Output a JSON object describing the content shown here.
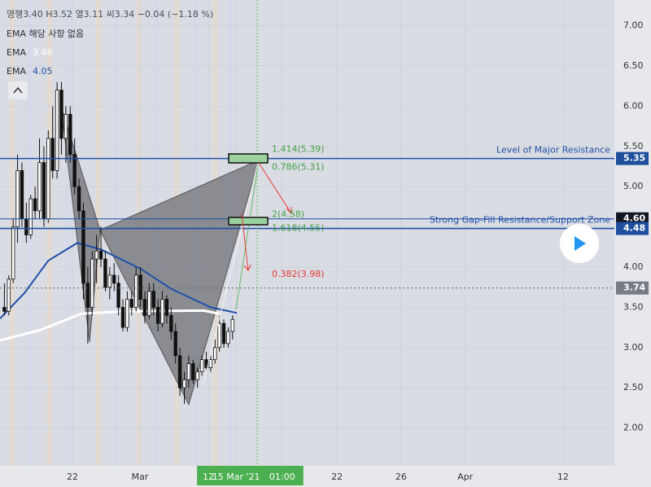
{
  "chart_data": {
    "type": "candlestick",
    "ohlc_header": "영행3.40 H3.52 열3.11 씨3.34 −0.04 (−1.18 %)",
    "indicator_note": "EMA 해당 사항 없음",
    "xlim": [
      0,
      140
    ],
    "ylim": [
      1.53,
      7.32
    ],
    "yticks": [
      {
        "value": 2,
        "label": "2.00"
      },
      {
        "value": 2.5,
        "label": "2.50"
      },
      {
        "value": 3,
        "label": "3.00"
      },
      {
        "value": 3.5,
        "label": "3.50"
      },
      {
        "value": 4,
        "label": "4.00"
      },
      {
        "value": 4.5,
        "label": "4.50"
      },
      {
        "value": 5,
        "label": "5.00"
      },
      {
        "value": 5.5,
        "label": "5.50"
      },
      {
        "value": 6,
        "label": "6.00"
      },
      {
        "value": 6.5,
        "label": "6.50"
      },
      {
        "value": 7,
        "label": "7.00"
      }
    ],
    "xticks": [
      {
        "value": 16.5,
        "label": "22"
      },
      {
        "value": 31.9,
        "label": "Mar"
      },
      {
        "value": 47.5,
        "label": "12"
      },
      {
        "value": 53.8,
        "label": "15 Mar '21"
      },
      {
        "value": 64.3,
        "label": "01:00"
      },
      {
        "value": 76.8,
        "label": "22"
      },
      {
        "value": 91.4,
        "label": "26"
      },
      {
        "value": 106,
        "label": "Apr"
      },
      {
        "value": 128.3,
        "label": "12"
      }
    ],
    "highlighted_xticks": [
      2,
      3,
      4
    ],
    "grid": true,
    "x": [
      1,
      2,
      3,
      4,
      5,
      6,
      7,
      8,
      9,
      10,
      11,
      12,
      13,
      14,
      15,
      16,
      17,
      18,
      19,
      20,
      21,
      22,
      23,
      24,
      25,
      26,
      27,
      28,
      29,
      30,
      31,
      32,
      33,
      34,
      35,
      36,
      37,
      38,
      39,
      40,
      41,
      42,
      43,
      44,
      45,
      46,
      47,
      48,
      49,
      50,
      51,
      52,
      53
    ],
    "open": [
      3.5,
      3.45,
      3.85,
      4.5,
      5.2,
      4.6,
      4.4,
      4.85,
      4.7,
      5.3,
      4.6,
      5.6,
      5.2,
      6.2,
      5.6,
      5.9,
      5.4,
      5.0,
      4.7,
      3.8,
      3.5,
      4.1,
      4.2,
      4.1,
      3.75,
      3.9,
      3.8,
      3.5,
      3.25,
      3.6,
      3.5,
      3.9,
      3.6,
      3.4,
      3.7,
      3.5,
      3.3,
      3.6,
      3.4,
      3.2,
      2.9,
      2.5,
      2.6,
      2.8,
      2.6,
      2.7,
      2.85,
      2.75,
      2.85,
      3.0,
      3.3,
      3.05,
      3.2
    ],
    "high": [
      3.8,
      3.9,
      4.6,
      5.4,
      5.3,
      4.8,
      4.9,
      5.0,
      5.6,
      5.5,
      5.7,
      6.0,
      6.3,
      6.3,
      6.0,
      6.0,
      5.6,
      5.1,
      4.8,
      4.0,
      4.2,
      4.4,
      4.5,
      4.2,
      4.0,
      4.05,
      3.9,
      3.6,
      3.7,
      3.7,
      4.0,
      4.0,
      3.7,
      3.8,
      3.8,
      3.6,
      3.7,
      3.65,
      3.5,
      3.3,
      3.0,
      2.7,
      2.9,
      2.85,
      2.75,
      2.9,
      2.95,
      2.9,
      3.1,
      3.4,
      3.35,
      3.25,
      3.4
    ],
    "low": [
      3.4,
      3.4,
      3.8,
      4.3,
      4.5,
      4.3,
      4.35,
      4.6,
      4.6,
      4.5,
      4.55,
      5.1,
      5.1,
      5.4,
      5.3,
      5.3,
      4.9,
      4.6,
      3.6,
      3.05,
      3.4,
      3.8,
      4.0,
      3.7,
      3.6,
      3.7,
      3.4,
      3.2,
      3.2,
      3.4,
      3.45,
      3.5,
      3.3,
      3.35,
      3.4,
      3.2,
      3.25,
      3.3,
      3.1,
      2.8,
      2.4,
      2.3,
      2.5,
      2.55,
      2.5,
      2.65,
      2.7,
      2.7,
      2.8,
      2.95,
      3.0,
      3.0,
      3.1
    ],
    "close": [
      3.45,
      3.85,
      4.5,
      5.2,
      4.6,
      4.4,
      4.85,
      4.7,
      5.3,
      4.6,
      5.6,
      5.2,
      6.2,
      5.6,
      5.9,
      5.4,
      5.0,
      4.7,
      3.8,
      3.5,
      4.1,
      4.2,
      4.1,
      3.75,
      3.9,
      3.8,
      3.5,
      3.25,
      3.6,
      3.5,
      3.9,
      3.6,
      3.4,
      3.7,
      3.5,
      3.3,
      3.6,
      3.4,
      3.2,
      2.9,
      2.5,
      2.6,
      2.8,
      2.6,
      2.7,
      2.85,
      2.75,
      2.85,
      3.0,
      3.3,
      3.05,
      3.2,
      3.35
    ],
    "series": [
      {
        "name": "EMA",
        "legend_value": 3.46,
        "color": "#ffffff",
        "x": [
          0,
          9.3,
          18.5,
          27.8,
          46.4,
          50
        ],
        "values": [
          3.09,
          3.22,
          3.42,
          3.45,
          3.46,
          3.42
        ]
      },
      {
        "name": "EMA",
        "legend_value": 4.05,
        "color": "#1e4fa8",
        "x": [
          0,
          5.6,
          11,
          17.6,
          23,
          32,
          39,
          48,
          54
        ],
        "values": [
          3.36,
          3.68,
          4.08,
          4.3,
          4.22,
          3.98,
          3.73,
          3.5,
          3.43
        ]
      }
    ],
    "pattern": {
      "x": [
        13.9,
        20.4,
        22.8,
        43,
        59
      ],
      "values": [
        6.0,
        3.07,
        4.46,
        2.29,
        5.33
      ]
    },
    "levels": [
      {
        "value": 5.35,
        "name": "Level of Major Resistance",
        "color": "#1f4e9c"
      },
      {
        "value": 4.6,
        "label": "4.60",
        "color": "#131722"
      },
      {
        "value": 4.48,
        "name": "Strong Gap-Fill Resistance/Support Zone",
        "color": "#1f4e9c"
      }
    ],
    "last_price": 3.74,
    "fib_labels": [
      {
        "text": "1.414(5.39)",
        "value": 5.39,
        "color": "#43a047"
      },
      {
        "text": "0.786(5.31)",
        "value": 5.31,
        "color": "#43a047"
      },
      {
        "text": "2(4.58)",
        "value": 4.58,
        "color": "#43a047"
      },
      {
        "text": "1.618(4.55)",
        "value": 4.55,
        "color": "#43a047"
      },
      {
        "text": "0.382(3.98)",
        "value": 3.98,
        "color": "#e53935"
      }
    ]
  }
}
